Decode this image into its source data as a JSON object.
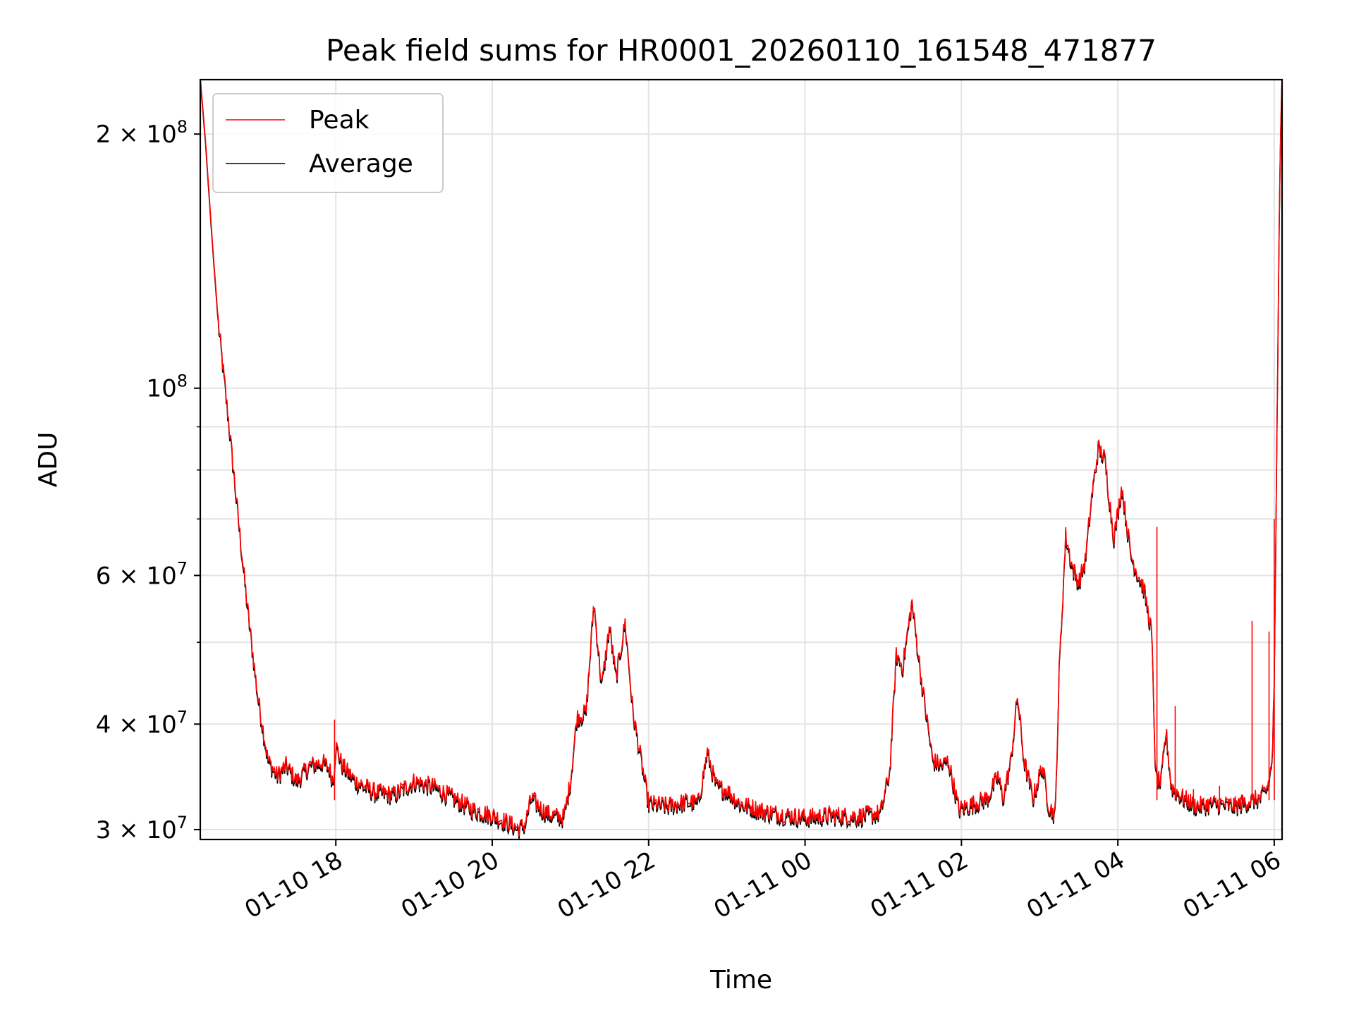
{
  "chart_data": {
    "type": "line",
    "title": "Peak field sums for HR0001_20260110_161548_471877",
    "xlabel": "Time",
    "ylabel": "ADU",
    "yscale": "log",
    "xlim": [
      "2026-01-10T16:16",
      "2026-01-11T06:06"
    ],
    "ylim": [
      29200000,
      232000000
    ],
    "grid": true,
    "legend_position": "upper left",
    "x_ticks": [
      {
        "value": "2026-01-10T18:00",
        "label": "01-10 18"
      },
      {
        "value": "2026-01-10T20:00",
        "label": "01-10 20"
      },
      {
        "value": "2026-01-10T22:00",
        "label": "01-10 22"
      },
      {
        "value": "2026-01-11T00:00",
        "label": "01-11 00"
      },
      {
        "value": "2026-01-11T02:00",
        "label": "01-11 02"
      },
      {
        "value": "2026-01-11T04:00",
        "label": "01-11 04"
      },
      {
        "value": "2026-01-11T06:00",
        "label": "01-11 06"
      }
    ],
    "y_ticks": [
      {
        "value": 30000000,
        "base": "3",
        "exp": "7"
      },
      {
        "value": 40000000,
        "base": "4",
        "exp": "7"
      },
      {
        "value": 60000000,
        "base": "6",
        "exp": "7"
      },
      {
        "value": 100000000,
        "base": "",
        "exp": "8"
      },
      {
        "value": 200000000,
        "base": "2",
        "exp": "8"
      }
    ],
    "y_minor_ticks": [
      50000000,
      70000000,
      80000000,
      90000000
    ],
    "colors": {
      "peak": "#ff0000",
      "average": "#000000",
      "grid": "#e3e3e3"
    },
    "series": [
      {
        "name": "Average",
        "color": "#000000",
        "points": [
          [
            "2026-01-10T16:16",
            232000000
          ],
          [
            "2026-01-10T16:20",
            195000000
          ],
          [
            "2026-01-10T16:25",
            150000000
          ],
          [
            "2026-01-10T16:30",
            118000000
          ],
          [
            "2026-01-10T16:38",
            90000000
          ],
          [
            "2026-01-10T16:45",
            70000000
          ],
          [
            "2026-01-10T16:52",
            55000000
          ],
          [
            "2026-01-10T17:00",
            43000000
          ],
          [
            "2026-01-10T17:08",
            36000000
          ],
          [
            "2026-01-10T17:15",
            34500000
          ],
          [
            "2026-01-10T17:22",
            35500000
          ],
          [
            "2026-01-10T17:30",
            34000000
          ],
          [
            "2026-01-10T17:40",
            35500000
          ],
          [
            "2026-01-10T17:50",
            35800000
          ],
          [
            "2026-01-10T17:55",
            35200000
          ],
          [
            "2026-01-10T17:58",
            34000000
          ],
          [
            "2026-01-10T18:00",
            37500000
          ],
          [
            "2026-01-10T18:05",
            35500000
          ],
          [
            "2026-01-10T18:15",
            34000000
          ],
          [
            "2026-01-10T18:30",
            33000000
          ],
          [
            "2026-01-10T18:45",
            32800000
          ],
          [
            "2026-01-10T19:00",
            34000000
          ],
          [
            "2026-01-10T19:15",
            33500000
          ],
          [
            "2026-01-10T19:30",
            32500000
          ],
          [
            "2026-01-10T19:45",
            31500000
          ],
          [
            "2026-01-10T20:00",
            31000000
          ],
          [
            "2026-01-10T20:10",
            30500000
          ],
          [
            "2026-01-10T20:20",
            29900000
          ],
          [
            "2026-01-10T20:25",
            30200000
          ],
          [
            "2026-01-10T20:30",
            32500000
          ],
          [
            "2026-01-10T20:38",
            31500000
          ],
          [
            "2026-01-10T20:45",
            31000000
          ],
          [
            "2026-01-10T20:55",
            30800000
          ],
          [
            "2026-01-10T21:00",
            34000000
          ],
          [
            "2026-01-10T21:05",
            40500000
          ],
          [
            "2026-01-10T21:12",
            41000000
          ],
          [
            "2026-01-10T21:18",
            55500000
          ],
          [
            "2026-01-10T21:24",
            44000000
          ],
          [
            "2026-01-10T21:30",
            52000000
          ],
          [
            "2026-01-10T21:35",
            45000000
          ],
          [
            "2026-01-10T21:42",
            52500000
          ],
          [
            "2026-01-10T21:48",
            41000000
          ],
          [
            "2026-01-10T21:55",
            35500000
          ],
          [
            "2026-01-10T22:00",
            32000000
          ],
          [
            "2026-01-10T22:15",
            31800000
          ],
          [
            "2026-01-10T22:30",
            32200000
          ],
          [
            "2026-01-10T22:38",
            32000000
          ],
          [
            "2026-01-10T22:45",
            36800000
          ],
          [
            "2026-01-10T22:52",
            33500000
          ],
          [
            "2026-01-10T23:00",
            33200000
          ],
          [
            "2026-01-10T23:10",
            32000000
          ],
          [
            "2026-01-10T23:30",
            31300000
          ],
          [
            "2026-01-11T00:00",
            30800000
          ],
          [
            "2026-01-11T00:20",
            31000000
          ],
          [
            "2026-01-11T00:40",
            30900000
          ],
          [
            "2026-01-11T00:58",
            31200000
          ],
          [
            "2026-01-11T01:05",
            35000000
          ],
          [
            "2026-01-11T01:10",
            48000000
          ],
          [
            "2026-01-11T01:15",
            46500000
          ],
          [
            "2026-01-11T01:22",
            55500000
          ],
          [
            "2026-01-11T01:30",
            44000000
          ],
          [
            "2026-01-11T01:38",
            36000000
          ],
          [
            "2026-01-11T01:45",
            35500000
          ],
          [
            "2026-01-11T01:50",
            36000000
          ],
          [
            "2026-01-11T01:58",
            31500000
          ],
          [
            "2026-01-11T02:05",
            31800000
          ],
          [
            "2026-01-11T02:20",
            32500000
          ],
          [
            "2026-01-11T02:28",
            34500000
          ],
          [
            "2026-01-11T02:32",
            32500000
          ],
          [
            "2026-01-11T02:38",
            36000000
          ],
          [
            "2026-01-11T02:43",
            43000000
          ],
          [
            "2026-01-11T02:48",
            36000000
          ],
          [
            "2026-01-11T02:55",
            32500000
          ],
          [
            "2026-01-11T03:02",
            35500000
          ],
          [
            "2026-01-11T03:07",
            31800000
          ],
          [
            "2026-01-11T03:12",
            31000000
          ],
          [
            "2026-01-11T03:15",
            46000000
          ],
          [
            "2026-01-11T03:20",
            66500000
          ],
          [
            "2026-01-11T03:25",
            61000000
          ],
          [
            "2026-01-11T03:30",
            58500000
          ],
          [
            "2026-01-11T03:35",
            62000000
          ],
          [
            "2026-01-11T03:40",
            74000000
          ],
          [
            "2026-01-11T03:45",
            84500000
          ],
          [
            "2026-01-11T03:50",
            82000000
          ],
          [
            "2026-01-11T03:57",
            66000000
          ],
          [
            "2026-01-11T04:03",
            76000000
          ],
          [
            "2026-01-11T04:10",
            63000000
          ],
          [
            "2026-01-11T04:15",
            60000000
          ],
          [
            "2026-01-11T04:20",
            57500000
          ],
          [
            "2026-01-11T04:26",
            51000000
          ],
          [
            "2026-01-11T04:29",
            34500000
          ],
          [
            "2026-01-11T04:33",
            33800000
          ],
          [
            "2026-01-11T04:37",
            39000000
          ],
          [
            "2026-01-11T04:41",
            33500000
          ],
          [
            "2026-01-11T04:50",
            32500000
          ],
          [
            "2026-01-11T05:00",
            31800000
          ],
          [
            "2026-01-11T05:15",
            32000000
          ],
          [
            "2026-01-11T05:30",
            31800000
          ],
          [
            "2026-01-11T05:40",
            32200000
          ],
          [
            "2026-01-11T05:50",
            32500000
          ],
          [
            "2026-01-11T05:55",
            33500000
          ],
          [
            "2026-01-11T05:58",
            35500000
          ],
          [
            "2026-01-11T05:59",
            38500000
          ],
          [
            "2026-01-11T06:00",
            45000000
          ],
          [
            "2026-01-11T06:01",
            60000000
          ],
          [
            "2026-01-11T06:02",
            85000000
          ],
          [
            "2026-01-11T06:03",
            120000000
          ],
          [
            "2026-01-11T06:04",
            165000000
          ],
          [
            "2026-01-11T06:05",
            205000000
          ],
          [
            "2026-01-11T06:06",
            232000000
          ]
        ]
      },
      {
        "name": "Peak",
        "color": "#ff0000",
        "spikes": [
          [
            "2026-01-10T17:59",
            40500000
          ],
          [
            "2026-01-11T04:30",
            68500000
          ],
          [
            "2026-01-11T04:44",
            42000000
          ],
          [
            "2026-01-11T05:43",
            53000000
          ],
          [
            "2026-01-11T05:56",
            51500000
          ],
          [
            "2026-01-11T06:00",
            70000000
          ],
          [
            "2026-01-11T04:58",
            33500000
          ],
          [
            "2026-01-11T05:18",
            33800000
          ],
          [
            "2026-01-11T05:35",
            33000000
          ]
        ]
      }
    ]
  }
}
